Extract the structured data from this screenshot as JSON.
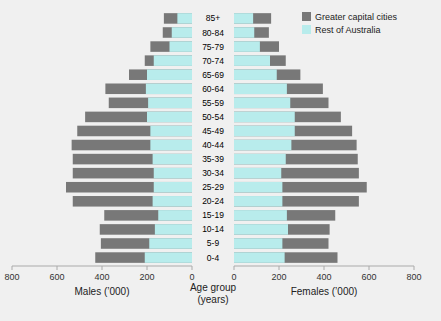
{
  "chart_data": [
    {
      "type": "bar",
      "orientation": "horizontal",
      "stacked": false,
      "categories": [
        "0-4",
        "5-9",
        "10-14",
        "15-19",
        "20-24",
        "25-29",
        "30-34",
        "35-39",
        "40-44",
        "45-49",
        "50-54",
        "55-59",
        "60-64",
        "65-69",
        "70-74",
        "75-79",
        "80-84",
        "85+"
      ],
      "series": [
        {
          "name": "Greater capital cities",
          "color": "#787878",
          "values": [
            430,
            405,
            410,
            390,
            530,
            560,
            530,
            530,
            535,
            510,
            475,
            370,
            385,
            280,
            210,
            185,
            130,
            125
          ]
        },
        {
          "name": "Rest of Australia",
          "color": "#b8ecec",
          "values": [
            210,
            190,
            165,
            150,
            175,
            170,
            170,
            175,
            185,
            185,
            200,
            195,
            205,
            200,
            170,
            100,
            90,
            65
          ]
        }
      ],
      "xlabel": "Males (’000)",
      "ylabel": "Age group\n(years)",
      "xlim": [
        800,
        0
      ],
      "xticks": [
        800,
        600,
        400,
        200,
        0
      ]
    },
    {
      "type": "bar",
      "orientation": "horizontal",
      "stacked": false,
      "categories": [
        "0-4",
        "5-9",
        "10-14",
        "15-19",
        "20-24",
        "25-29",
        "30-34",
        "35-39",
        "40-44",
        "45-49",
        "50-54",
        "55-59",
        "60-64",
        "65-69",
        "70-74",
        "75-79",
        "80-84",
        "85+"
      ],
      "series": [
        {
          "name": "Greater capital cities",
          "color": "#787878",
          "values": [
            460,
            420,
            425,
            450,
            555,
            590,
            555,
            550,
            545,
            525,
            475,
            420,
            395,
            295,
            230,
            200,
            155,
            165
          ]
        },
        {
          "name": "Rest of Australia",
          "color": "#b8ecec",
          "values": [
            225,
            215,
            240,
            235,
            215,
            215,
            210,
            230,
            255,
            270,
            270,
            250,
            235,
            190,
            160,
            115,
            90,
            85
          ]
        }
      ],
      "xlabel": "Females (’000)",
      "xlim": [
        0,
        800
      ],
      "xticks": [
        0,
        200,
        400,
        600,
        800
      ],
      "legend": "upper right"
    }
  ]
}
